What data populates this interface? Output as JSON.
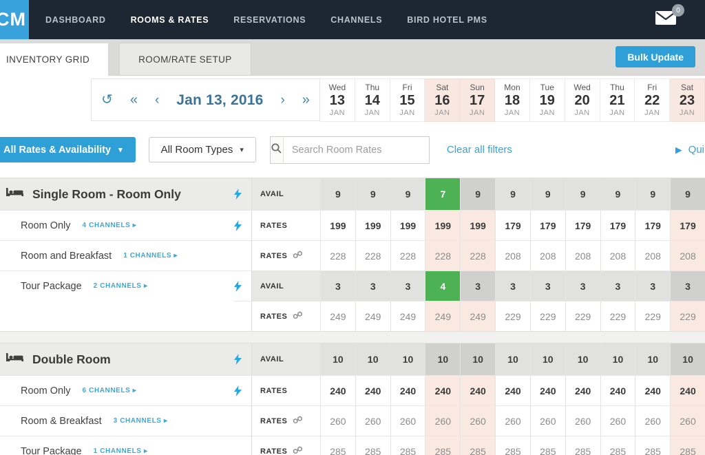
{
  "nav": {
    "logo_text": "CM",
    "items": [
      "DASHBOARD",
      "ROOMS & RATES",
      "RESERVATIONS",
      "CHANNELS",
      "BIRD HOTEL PMS"
    ],
    "active_item": "ROOMS & RATES",
    "mail_badge": "0"
  },
  "tabs": {
    "items": [
      "INVENTORY GRID",
      "ROOM/RATE SETUP"
    ],
    "active": "INVENTORY GRID",
    "bulk_update_label": "Bulk Update"
  },
  "date_nav": {
    "refresh_icon": "↺",
    "first_icon": "«",
    "prev_icon": "‹",
    "current_date": "Jan 13, 2016",
    "next_icon": "›",
    "last_icon": "»"
  },
  "calendar": {
    "month_label": "JAN",
    "days": [
      {
        "dow": "Wed",
        "day": "13",
        "weekend": false
      },
      {
        "dow": "Thu",
        "day": "14",
        "weekend": false
      },
      {
        "dow": "Fri",
        "day": "15",
        "weekend": false
      },
      {
        "dow": "Sat",
        "day": "16",
        "weekend": true
      },
      {
        "dow": "Sun",
        "day": "17",
        "weekend": true
      },
      {
        "dow": "Mon",
        "day": "18",
        "weekend": false
      },
      {
        "dow": "Tue",
        "day": "19",
        "weekend": false
      },
      {
        "dow": "Wed",
        "day": "20",
        "weekend": false
      },
      {
        "dow": "Thu",
        "day": "21",
        "weekend": false
      },
      {
        "dow": "Fri",
        "day": "22",
        "weekend": false
      },
      {
        "dow": "Sat",
        "day": "23",
        "weekend": true
      }
    ]
  },
  "filters": {
    "rates_filter_label": "All Rates & Availability",
    "room_types_label": "All Room Types",
    "search_placeholder": "Search Room Rates",
    "clear_filters_label": "Clear all filters",
    "quick_label": "Qui",
    "dropdown_caret": "▾",
    "quick_play_icon": "▶",
    "channels_caret": "▸"
  },
  "grid": {
    "row_labels": {
      "avail": "AVAIL",
      "rates": "RATES"
    },
    "sections": [
      {
        "title": "Single Room - Room Only",
        "header": {
          "lightning": true,
          "kind": "avail",
          "green_index": 3,
          "values": [
            9,
            9,
            9,
            7,
            9,
            9,
            9,
            9,
            9,
            9,
            9
          ]
        },
        "rows": [
          {
            "name": "Room Only",
            "channels": "4 CHANNELS",
            "lightning": true,
            "kind": "rates",
            "linked": false,
            "emph": true,
            "green_index": -1,
            "values": [
              199,
              199,
              199,
              199,
              199,
              179,
              179,
              179,
              179,
              179,
              179
            ]
          },
          {
            "name": "Room and Breakfast",
            "channels": "1 CHANNELS",
            "lightning": false,
            "kind": "rates",
            "linked": true,
            "emph": false,
            "green_index": -1,
            "values": [
              228,
              228,
              228,
              228,
              228,
              208,
              208,
              208,
              208,
              208,
              208
            ]
          },
          {
            "name": "Tour Package",
            "channels": "2 CHANNELS",
            "lightning": true,
            "kind": "avail",
            "linked": false,
            "emph": true,
            "green_index": 3,
            "values": [
              3,
              3,
              3,
              4,
              3,
              3,
              3,
              3,
              3,
              3,
              3
            ]
          },
          {
            "name": "",
            "channels": "",
            "cont": true,
            "lightning": false,
            "kind": "rates",
            "linked": true,
            "emph": false,
            "green_index": -1,
            "values": [
              249,
              249,
              249,
              249,
              249,
              229,
              229,
              229,
              229,
              229,
              229
            ]
          }
        ]
      },
      {
        "title": "Double Room",
        "header": {
          "lightning": true,
          "kind": "avail",
          "green_index": -1,
          "values": [
            10,
            10,
            10,
            10,
            10,
            10,
            10,
            10,
            10,
            10,
            10
          ]
        },
        "rows": [
          {
            "name": "Room Only",
            "channels": "6 CHANNELS",
            "lightning": true,
            "kind": "rates",
            "linked": false,
            "emph": true,
            "green_index": -1,
            "values": [
              240,
              240,
              240,
              240,
              240,
              240,
              240,
              240,
              240,
              240,
              240
            ]
          },
          {
            "name": "Room & Breakfast",
            "channels": "3 CHANNELS",
            "lightning": false,
            "kind": "rates",
            "linked": true,
            "emph": false,
            "green_index": -1,
            "values": [
              260,
              260,
              260,
              260,
              260,
              260,
              260,
              260,
              260,
              260,
              260
            ]
          },
          {
            "name": "Tour Package",
            "channels": "1 CHANNELS",
            "lightning": false,
            "kind": "rates",
            "linked": true,
            "emph": false,
            "green_index": -1,
            "values": [
              285,
              285,
              285,
              285,
              285,
              285,
              285,
              285,
              285,
              285,
              285
            ]
          }
        ]
      }
    ]
  },
  "colors": {
    "navbar_bg": "#1d2733",
    "logo_blue": "#38a2dc",
    "accent_blue": "#2f9fd8",
    "link_blue": "#3aa2d4",
    "date_blue": "#3b7398",
    "green_cell": "#4db254",
    "weekend_pink": "#fae9e1",
    "avail_gray": "#e1e1df",
    "avail_weekend_gray": "#d0d0ce"
  }
}
